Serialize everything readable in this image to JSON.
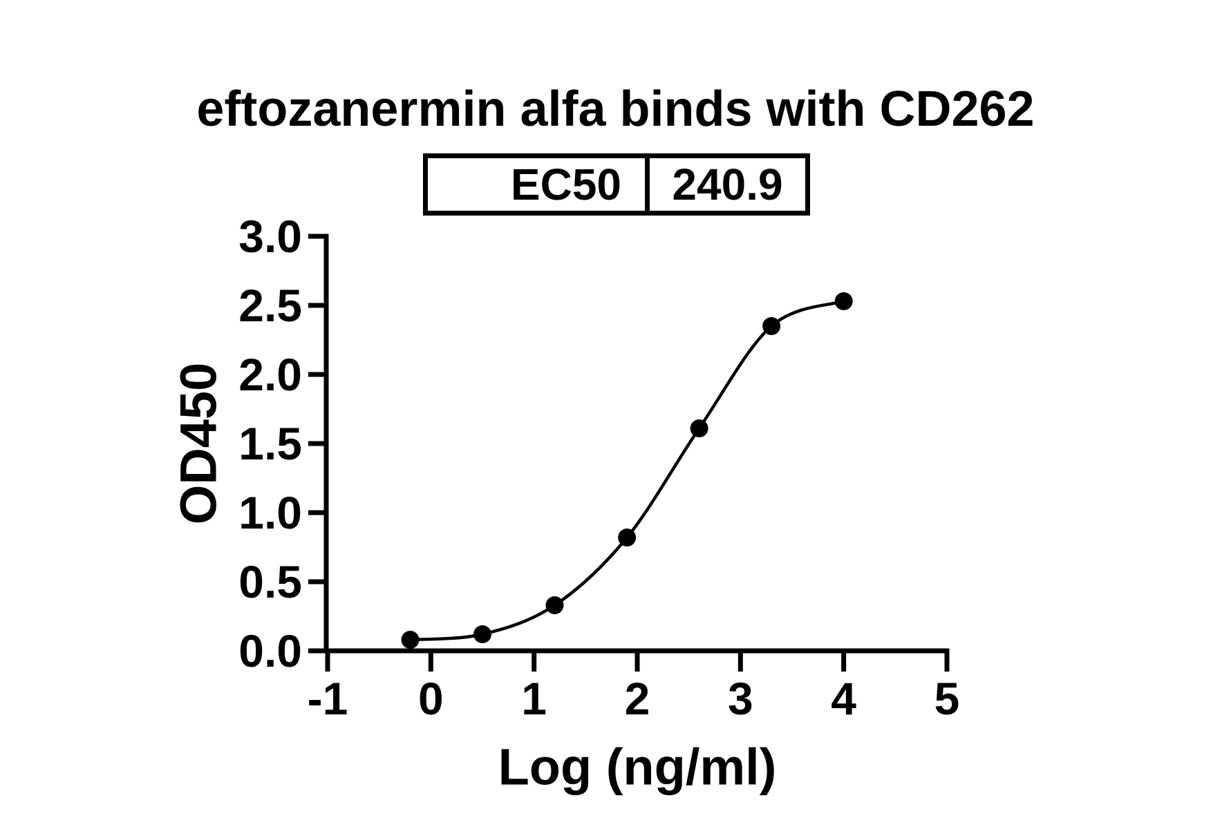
{
  "title": "eftozanermin alfa binds with CD262",
  "ec50_table": {
    "label": "EC50",
    "value": "240.9"
  },
  "chart_data": {
    "type": "scatter",
    "title": "eftozanermin alfa binds with CD262",
    "xlabel": "Log (ng/ml)",
    "ylabel": "OD450",
    "x": [
      -0.2,
      0.5,
      1.2,
      1.9,
      2.6,
      3.3,
      4.0
    ],
    "y": [
      0.08,
      0.12,
      0.33,
      0.82,
      1.61,
      2.35,
      2.53
    ],
    "xlim": [
      -1,
      5
    ],
    "ylim": [
      0.0,
      3.0
    ],
    "xticks": [
      -1,
      0,
      1,
      2,
      3,
      4,
      5
    ],
    "yticks": [
      "0.0",
      "0.5",
      "1.0",
      "1.5",
      "2.0",
      "2.5",
      "3.0"
    ],
    "ec50": 240.9,
    "grid": false,
    "legend_position": "none",
    "curve": "sigmoidal 4PL fit through points",
    "marker": "filled-circle",
    "marker_color": "#000000",
    "line_color": "#000000",
    "background_color": "#ffffff"
  }
}
